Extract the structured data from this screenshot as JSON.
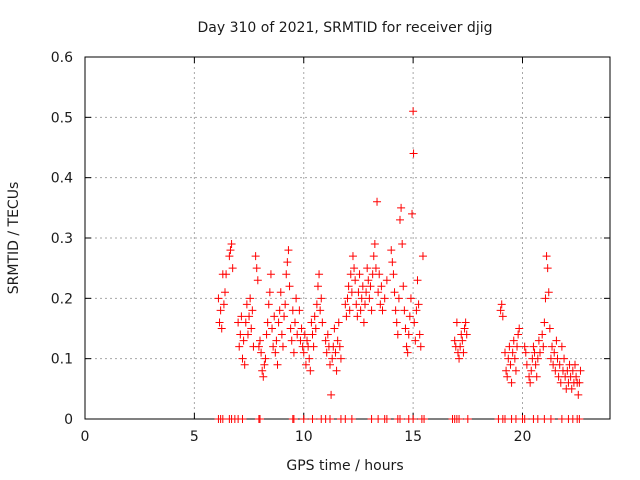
{
  "chart_data": {
    "type": "scatter",
    "title": "Day 310 of 2021, SRMTID for receiver djig",
    "xlabel": "GPS time / hours",
    "ylabel": "SRMTID / TECUs",
    "xlim": [
      0,
      24
    ],
    "ylim": [
      0,
      0.6
    ],
    "xticks": [
      0,
      5,
      10,
      15,
      20
    ],
    "xtick_labels": [
      "0",
      "5",
      "10",
      "15",
      "20"
    ],
    "yticks": [
      0,
      0.1,
      0.2,
      0.3,
      0.4,
      0.5,
      0.6
    ],
    "ytick_labels": [
      "0",
      "0.1",
      "0.2",
      "0.3",
      "0.4",
      "0.5",
      "0.6"
    ],
    "grid": true,
    "legend": "none",
    "marker": "+",
    "color": "#ff0000",
    "series": [
      {
        "name": "SRMTID",
        "points": [
          [
            6.1,
            0.2
          ],
          [
            6.15,
            0.16
          ],
          [
            6.2,
            0.18
          ],
          [
            6.25,
            0.15
          ],
          [
            6.3,
            0.24
          ],
          [
            6.35,
            0.19
          ],
          [
            6.4,
            0.21
          ],
          [
            6.45,
            0.24
          ],
          [
            6.6,
            0.27
          ],
          [
            6.7,
            0.29
          ],
          [
            6.75,
            0.25
          ],
          [
            6.65,
            0.28
          ],
          [
            7.0,
            0.16
          ],
          [
            7.05,
            0.12
          ],
          [
            7.1,
            0.14
          ],
          [
            7.15,
            0.17
          ],
          [
            7.2,
            0.1
          ],
          [
            7.25,
            0.13
          ],
          [
            7.3,
            0.09
          ],
          [
            7.35,
            0.16
          ],
          [
            7.4,
            0.19
          ],
          [
            7.45,
            0.14
          ],
          [
            7.5,
            0.17
          ],
          [
            7.55,
            0.2
          ],
          [
            7.6,
            0.15
          ],
          [
            7.65,
            0.18
          ],
          [
            7.7,
            0.12
          ],
          [
            7.8,
            0.27
          ],
          [
            7.85,
            0.25
          ],
          [
            7.9,
            0.23
          ],
          [
            7.95,
            0.12
          ],
          [
            8.0,
            0.13
          ],
          [
            8.05,
            0.11
          ],
          [
            8.1,
            0.08
          ],
          [
            8.15,
            0.07
          ],
          [
            8.2,
            0.09
          ],
          [
            8.25,
            0.1
          ],
          [
            8.3,
            0.14
          ],
          [
            8.35,
            0.16
          ],
          [
            8.4,
            0.19
          ],
          [
            8.45,
            0.21
          ],
          [
            8.5,
            0.24
          ],
          [
            8.55,
            0.15
          ],
          [
            8.6,
            0.12
          ],
          [
            8.65,
            0.17
          ],
          [
            8.7,
            0.11
          ],
          [
            8.75,
            0.13
          ],
          [
            8.8,
            0.09
          ],
          [
            8.85,
            0.16
          ],
          [
            8.9,
            0.18
          ],
          [
            8.95,
            0.21
          ],
          [
            9.0,
            0.14
          ],
          [
            9.05,
            0.12
          ],
          [
            9.1,
            0.17
          ],
          [
            9.15,
            0.19
          ],
          [
            9.2,
            0.24
          ],
          [
            9.25,
            0.26
          ],
          [
            9.3,
            0.28
          ],
          [
            9.35,
            0.22
          ],
          [
            9.4,
            0.15
          ],
          [
            9.45,
            0.13
          ],
          [
            9.5,
            0.18
          ],
          [
            9.55,
            0.11
          ],
          [
            9.6,
            0.16
          ],
          [
            9.65,
            0.2
          ],
          [
            9.7,
            0.14
          ],
          [
            9.8,
            0.18
          ],
          [
            9.85,
            0.13
          ],
          [
            9.9,
            0.15
          ],
          [
            9.95,
            0.12
          ],
          [
            10.0,
            0.11
          ],
          [
            10.05,
            0.14
          ],
          [
            10.1,
            0.09
          ],
          [
            10.15,
            0.13
          ],
          [
            10.2,
            0.12
          ],
          [
            10.25,
            0.1
          ],
          [
            10.3,
            0.08
          ],
          [
            10.35,
            0.16
          ],
          [
            10.4,
            0.14
          ],
          [
            10.45,
            0.12
          ],
          [
            10.5,
            0.17
          ],
          [
            10.55,
            0.15
          ],
          [
            10.6,
            0.19
          ],
          [
            10.65,
            0.22
          ],
          [
            10.7,
            0.24
          ],
          [
            10.75,
            0.18
          ],
          [
            10.8,
            0.2
          ],
          [
            10.85,
            0.16
          ],
          [
            11.0,
            0.13
          ],
          [
            11.05,
            0.11
          ],
          [
            11.1,
            0.14
          ],
          [
            11.15,
            0.12
          ],
          [
            11.2,
            0.09
          ],
          [
            11.25,
            0.04
          ],
          [
            11.3,
            0.1
          ],
          [
            11.35,
            0.12
          ],
          [
            11.4,
            0.15
          ],
          [
            11.45,
            0.11
          ],
          [
            11.5,
            0.08
          ],
          [
            11.55,
            0.13
          ],
          [
            11.6,
            0.16
          ],
          [
            11.65,
            0.12
          ],
          [
            11.7,
            0.1
          ],
          [
            11.9,
            0.19
          ],
          [
            11.95,
            0.17
          ],
          [
            12.0,
            0.2
          ],
          [
            12.05,
            0.22
          ],
          [
            12.1,
            0.18
          ],
          [
            12.15,
            0.24
          ],
          [
            12.2,
            0.21
          ],
          [
            12.25,
            0.27
          ],
          [
            12.3,
            0.25
          ],
          [
            12.35,
            0.23
          ],
          [
            12.4,
            0.19
          ],
          [
            12.45,
            0.17
          ],
          [
            12.5,
            0.21
          ],
          [
            12.55,
            0.24
          ],
          [
            12.6,
            0.18
          ],
          [
            12.65,
            0.2
          ],
          [
            12.7,
            0.22
          ],
          [
            12.75,
            0.16
          ],
          [
            12.8,
            0.19
          ],
          [
            12.85,
            0.21
          ],
          [
            12.9,
            0.25
          ],
          [
            12.95,
            0.23
          ],
          [
            13.0,
            0.2
          ],
          [
            13.05,
            0.22
          ],
          [
            13.1,
            0.18
          ],
          [
            13.15,
            0.24
          ],
          [
            13.2,
            0.27
          ],
          [
            13.25,
            0.29
          ],
          [
            13.3,
            0.25
          ],
          [
            13.35,
            0.36
          ],
          [
            13.4,
            0.21
          ],
          [
            13.45,
            0.24
          ],
          [
            13.5,
            0.19
          ],
          [
            13.55,
            0.22
          ],
          [
            13.6,
            0.18
          ],
          [
            13.7,
            0.2
          ],
          [
            13.8,
            0.23
          ],
          [
            14.0,
            0.28
          ],
          [
            14.05,
            0.26
          ],
          [
            14.1,
            0.24
          ],
          [
            14.15,
            0.21
          ],
          [
            14.2,
            0.18
          ],
          [
            14.25,
            0.16
          ],
          [
            14.3,
            0.14
          ],
          [
            14.35,
            0.2
          ],
          [
            14.4,
            0.33
          ],
          [
            14.45,
            0.35
          ],
          [
            14.5,
            0.29
          ],
          [
            14.55,
            0.22
          ],
          [
            14.6,
            0.18
          ],
          [
            14.65,
            0.15
          ],
          [
            14.7,
            0.12
          ],
          [
            14.75,
            0.11
          ],
          [
            14.8,
            0.14
          ],
          [
            14.85,
            0.17
          ],
          [
            14.9,
            0.2
          ],
          [
            14.95,
            0.34
          ],
          [
            15.0,
            0.51
          ],
          [
            15.02,
            0.44
          ],
          [
            15.05,
            0.16
          ],
          [
            15.1,
            0.13
          ],
          [
            15.15,
            0.18
          ],
          [
            15.2,
            0.23
          ],
          [
            15.25,
            0.19
          ],
          [
            15.3,
            0.14
          ],
          [
            15.35,
            0.12
          ],
          [
            15.45,
            0.27
          ],
          [
            16.9,
            0.13
          ],
          [
            16.95,
            0.12
          ],
          [
            17.0,
            0.16
          ],
          [
            17.05,
            0.11
          ],
          [
            17.1,
            0.1
          ],
          [
            17.15,
            0.12
          ],
          [
            17.2,
            0.14
          ],
          [
            17.25,
            0.13
          ],
          [
            17.3,
            0.11
          ],
          [
            17.35,
            0.15
          ],
          [
            17.4,
            0.16
          ],
          [
            17.45,
            0.14
          ],
          [
            19.0,
            0.18
          ],
          [
            19.05,
            0.19
          ],
          [
            19.1,
            0.17
          ],
          [
            19.2,
            0.11
          ],
          [
            19.25,
            0.08
          ],
          [
            19.3,
            0.07
          ],
          [
            19.35,
            0.1
          ],
          [
            19.4,
            0.12
          ],
          [
            19.45,
            0.09
          ],
          [
            19.5,
            0.06
          ],
          [
            19.55,
            0.11
          ],
          [
            19.6,
            0.13
          ],
          [
            19.65,
            0.1
          ],
          [
            19.7,
            0.08
          ],
          [
            19.75,
            0.12
          ],
          [
            19.8,
            0.14
          ],
          [
            19.85,
            0.15
          ],
          [
            20.1,
            0.12
          ],
          [
            20.15,
            0.11
          ],
          [
            20.2,
            0.09
          ],
          [
            20.3,
            0.07
          ],
          [
            20.35,
            0.06
          ],
          [
            20.4,
            0.08
          ],
          [
            20.45,
            0.1
          ],
          [
            20.5,
            0.12
          ],
          [
            20.55,
            0.11
          ],
          [
            20.6,
            0.09
          ],
          [
            20.65,
            0.07
          ],
          [
            20.7,
            0.1
          ],
          [
            20.75,
            0.13
          ],
          [
            20.8,
            0.11
          ],
          [
            20.9,
            0.14
          ],
          [
            20.95,
            0.12
          ],
          [
            21.0,
            0.16
          ],
          [
            21.05,
            0.2
          ],
          [
            21.1,
            0.27
          ],
          [
            21.15,
            0.25
          ],
          [
            21.2,
            0.21
          ],
          [
            21.25,
            0.15
          ],
          [
            21.3,
            0.1
          ],
          [
            21.35,
            0.12
          ],
          [
            21.4,
            0.09
          ],
          [
            21.45,
            0.11
          ],
          [
            21.5,
            0.08
          ],
          [
            21.55,
            0.13
          ],
          [
            21.6,
            0.1
          ],
          [
            21.65,
            0.07
          ],
          [
            21.7,
            0.09
          ],
          [
            21.75,
            0.06
          ],
          [
            21.8,
            0.12
          ],
          [
            21.85,
            0.08
          ],
          [
            21.9,
            0.1
          ],
          [
            21.95,
            0.07
          ],
          [
            22.0,
            0.05
          ],
          [
            22.05,
            0.08
          ],
          [
            22.1,
            0.06
          ],
          [
            22.15,
            0.09
          ],
          [
            22.2,
            0.07
          ],
          [
            22.25,
            0.05
          ],
          [
            22.3,
            0.08
          ],
          [
            22.35,
            0.06
          ],
          [
            22.4,
            0.09
          ],
          [
            22.45,
            0.07
          ],
          [
            22.5,
            0.06
          ],
          [
            22.55,
            0.04
          ],
          [
            22.6,
            0.06
          ],
          [
            22.65,
            0.08
          ]
        ]
      },
      {
        "name": "SRMTID (zero values)",
        "points": [
          [
            6.1,
            0
          ],
          [
            6.2,
            0
          ],
          [
            6.3,
            0
          ],
          [
            6.6,
            0
          ],
          [
            6.7,
            0
          ],
          [
            6.85,
            0
          ],
          [
            7.0,
            0
          ],
          [
            7.2,
            0
          ],
          [
            7.95,
            0
          ],
          [
            8.0,
            0
          ],
          [
            9.5,
            0
          ],
          [
            9.55,
            0
          ],
          [
            10.0,
            0
          ],
          [
            10.4,
            0
          ],
          [
            10.8,
            0
          ],
          [
            11.0,
            0
          ],
          [
            11.2,
            0
          ],
          [
            11.7,
            0
          ],
          [
            11.9,
            0
          ],
          [
            12.2,
            0
          ],
          [
            13.1,
            0
          ],
          [
            13.4,
            0
          ],
          [
            13.7,
            0
          ],
          [
            13.8,
            0
          ],
          [
            14.3,
            0
          ],
          [
            14.4,
            0
          ],
          [
            14.8,
            0
          ],
          [
            15.0,
            0
          ],
          [
            15.4,
            0
          ],
          [
            15.5,
            0
          ],
          [
            16.8,
            0
          ],
          [
            16.9,
            0
          ],
          [
            17.0,
            0
          ],
          [
            17.1,
            0
          ],
          [
            17.5,
            0
          ],
          [
            18.9,
            0
          ],
          [
            19.1,
            0
          ],
          [
            19.2,
            0
          ],
          [
            19.5,
            0
          ],
          [
            19.7,
            0
          ],
          [
            20.0,
            0
          ],
          [
            20.1,
            0
          ],
          [
            20.5,
            0
          ],
          [
            20.7,
            0
          ],
          [
            21.0,
            0
          ],
          [
            21.3,
            0
          ],
          [
            21.8,
            0
          ],
          [
            22.1,
            0
          ],
          [
            22.3,
            0
          ],
          [
            22.5,
            0
          ],
          [
            22.6,
            0
          ]
        ]
      }
    ]
  }
}
